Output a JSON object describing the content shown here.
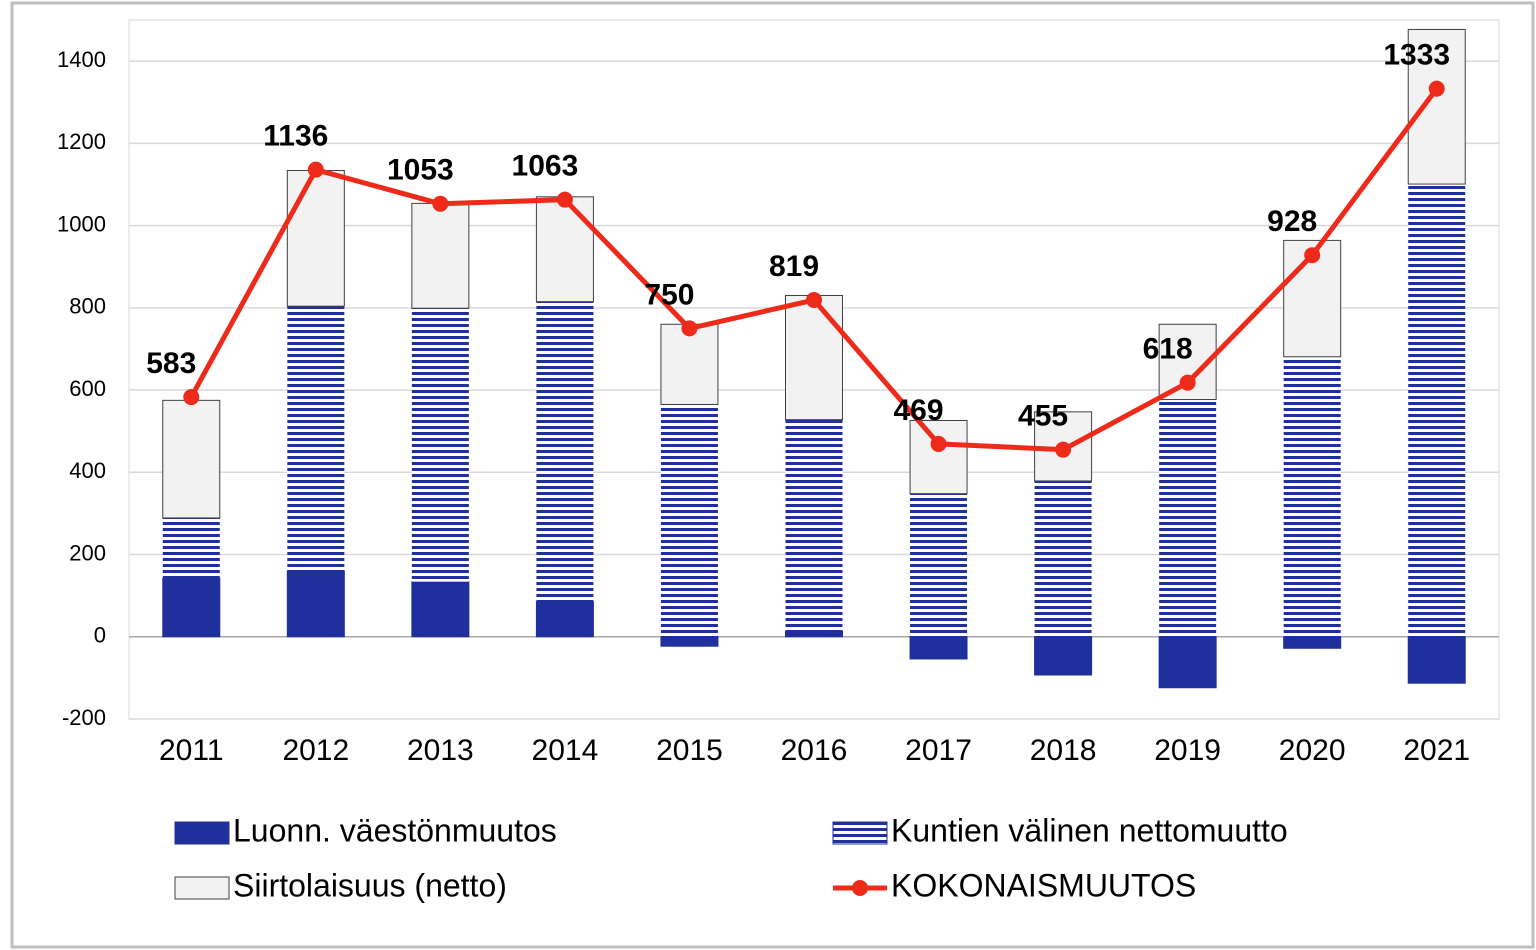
{
  "chart_data": {
    "type": "bar",
    "stacked": true,
    "categories": [
      "2011",
      "2012",
      "2013",
      "2014",
      "2015",
      "2016",
      "2017",
      "2018",
      "2019",
      "2020",
      "2021"
    ],
    "series": [
      {
        "name": "Luonn. väestönmuutos",
        "type": "bar",
        "color": "#1f2f9c",
        "values": [
          142,
          160,
          134,
          85,
          -23,
          13,
          -54,
          -93,
          -124,
          -28,
          -113
        ]
      },
      {
        "name": "Kuntien välinen nettomuutto",
        "type": "bar",
        "color": "#1f2f9c",
        "pattern": "stripes",
        "values": [
          147,
          644,
          665,
          730,
          565,
          515,
          348,
          379,
          577,
          681,
          1101
        ]
      },
      {
        "name": "Siirtolaisuus (netto)",
        "type": "bar",
        "color": "#f2f2f2",
        "values": [
          286,
          330,
          255,
          255,
          195,
          302,
          178,
          168,
          183,
          283,
          376
        ]
      },
      {
        "name": "KOKONAISMUUTOS",
        "type": "line",
        "color": "#ee2a1b",
        "values": [
          583,
          1136,
          1053,
          1063,
          750,
          819,
          469,
          455,
          618,
          928,
          1333
        ]
      }
    ],
    "ylim": [
      -200,
      1500
    ],
    "yticks": [
      -200,
      0,
      200,
      400,
      600,
      800,
      1000,
      1200,
      1400
    ],
    "grid": true
  }
}
